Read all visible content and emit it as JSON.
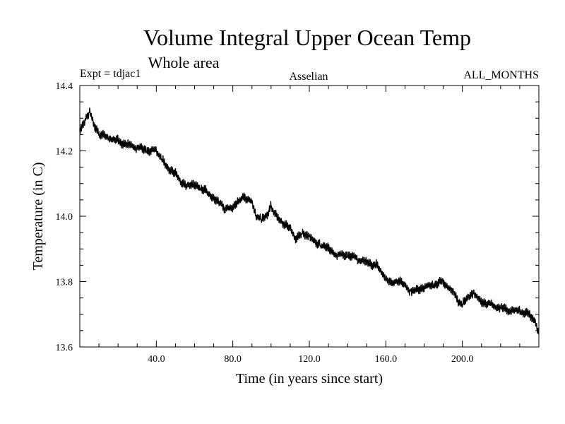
{
  "chart_data": {
    "type": "line",
    "title": "Volume Integral Upper Ocean Temp",
    "subtitle": "Whole area",
    "left_label": "Expt = tdjac1",
    "center_label": "Asselian",
    "right_label": "ALL_MONTHS",
    "xlabel": "Time (in years since start)",
    "ylabel": "Temperature (in C)",
    "xlim": [
      0,
      240
    ],
    "ylim": [
      13.6,
      14.4
    ],
    "x_ticks": [
      40,
      80,
      120,
      160,
      200
    ],
    "x_tick_labels": [
      "40.0",
      "80.0",
      "120.0",
      "160.0",
      "200.0"
    ],
    "y_ticks": [
      13.6,
      13.8,
      14.0,
      14.2,
      14.4
    ],
    "y_tick_labels": [
      "13.6",
      "13.8",
      "14.0",
      "14.2",
      "14.4"
    ],
    "grid": false,
    "series": [
      {
        "name": "Temperature",
        "color": "#000000",
        "x": [
          0,
          3,
          5,
          8,
          10,
          15,
          20,
          25,
          30,
          35,
          40,
          43,
          46,
          50,
          53,
          56,
          60,
          63,
          66,
          70,
          73,
          76,
          80,
          83,
          86,
          90,
          92,
          95,
          98,
          100,
          103,
          106,
          110,
          113,
          116,
          120,
          123,
          126,
          130,
          135,
          140,
          145,
          150,
          155,
          160,
          163,
          166,
          170,
          173,
          176,
          180,
          185,
          190,
          195,
          198,
          200,
          203,
          206,
          210,
          215,
          220,
          225,
          230,
          235,
          238,
          240
        ],
        "values": [
          14.26,
          14.3,
          14.32,
          14.27,
          14.25,
          14.24,
          14.23,
          14.22,
          14.21,
          14.2,
          14.2,
          14.18,
          14.15,
          14.13,
          14.1,
          14.09,
          14.1,
          14.09,
          14.08,
          14.05,
          14.04,
          14.02,
          14.03,
          14.05,
          14.06,
          14.04,
          14.0,
          13.99,
          14.0,
          14.03,
          14.0,
          13.98,
          13.96,
          13.93,
          13.95,
          13.94,
          13.92,
          13.91,
          13.9,
          13.88,
          13.88,
          13.87,
          13.86,
          13.85,
          13.81,
          13.79,
          13.8,
          13.79,
          13.77,
          13.78,
          13.78,
          13.79,
          13.8,
          13.77,
          13.74,
          13.73,
          13.75,
          13.76,
          13.74,
          13.73,
          13.72,
          13.71,
          13.71,
          13.7,
          13.68,
          13.64
        ]
      }
    ]
  }
}
